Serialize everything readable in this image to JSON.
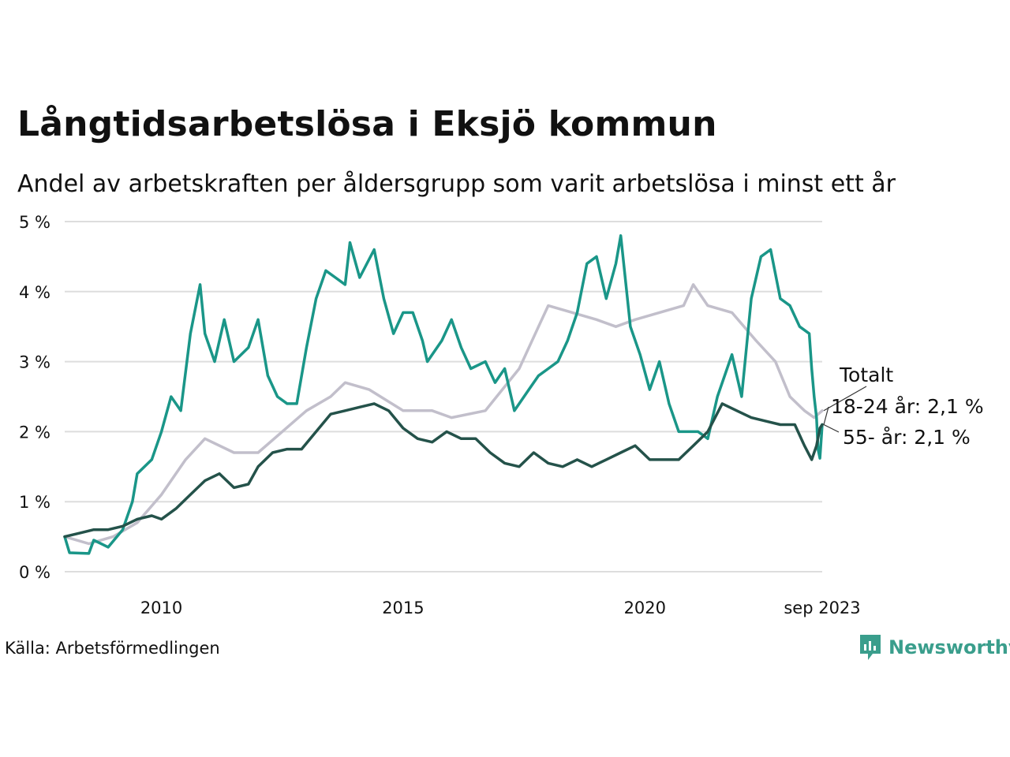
{
  "title": "Långtidsarbetslösa i Eksjö kommun",
  "subtitle": "Andel av arbetskraften per åldersgrupp som varit arbetslösa i minst ett år",
  "source": "Källa: Arbetsförmedlingen",
  "brand": "Newsworthy",
  "colors": {
    "total": "#c2bfcb",
    "youth": "#1a9688",
    "senior": "#24524a",
    "grid": "#dddddd",
    "brand": "#3a9e8c"
  },
  "chart_data": {
    "type": "line",
    "xlim": [
      2008.0,
      2023.667
    ],
    "ylim": [
      0,
      5
    ],
    "y_ticks": [
      {
        "value": 0,
        "label": "0 %"
      },
      {
        "value": 1,
        "label": "1 %"
      },
      {
        "value": 2,
        "label": "2 %"
      },
      {
        "value": 3,
        "label": "3 %"
      },
      {
        "value": 4,
        "label": "4 %"
      },
      {
        "value": 5,
        "label": "5 %"
      }
    ],
    "x_ticks": [
      {
        "value": 2010,
        "label": "2010"
      },
      {
        "value": 2015,
        "label": "2015"
      },
      {
        "value": 2020,
        "label": "2020"
      },
      {
        "value": 2023.667,
        "label": "sep 2023"
      }
    ],
    "series": [
      {
        "name": "Totalt",
        "label": "Totalt",
        "color": "#c2bfcb",
        "points": [
          [
            2008.0,
            0.5
          ],
          [
            2008.5,
            0.4
          ],
          [
            2009.0,
            0.5
          ],
          [
            2009.5,
            0.7
          ],
          [
            2010.0,
            1.1
          ],
          [
            2010.5,
            1.6
          ],
          [
            2010.9,
            1.9
          ],
          [
            2011.5,
            1.7
          ],
          [
            2012.0,
            1.7
          ],
          [
            2012.5,
            2.0
          ],
          [
            2013.0,
            2.3
          ],
          [
            2013.5,
            2.5
          ],
          [
            2013.8,
            2.7
          ],
          [
            2014.3,
            2.6
          ],
          [
            2015.0,
            2.3
          ],
          [
            2015.6,
            2.3
          ],
          [
            2016.0,
            2.2
          ],
          [
            2016.7,
            2.3
          ],
          [
            2017.4,
            2.9
          ],
          [
            2017.8,
            3.5
          ],
          [
            2018.0,
            3.8
          ],
          [
            2018.5,
            3.7
          ],
          [
            2019.0,
            3.6
          ],
          [
            2019.4,
            3.5
          ],
          [
            2019.8,
            3.6
          ],
          [
            2020.3,
            3.7
          ],
          [
            2020.8,
            3.8
          ],
          [
            2021.0,
            4.1
          ],
          [
            2021.3,
            3.8
          ],
          [
            2021.8,
            3.7
          ],
          [
            2022.3,
            3.3
          ],
          [
            2022.7,
            3.0
          ],
          [
            2023.0,
            2.5
          ],
          [
            2023.3,
            2.3
          ],
          [
            2023.5,
            2.2
          ],
          [
            2023.667,
            2.3
          ]
        ]
      },
      {
        "name": "18-24 år",
        "label": "18-24 år: 2,1 %",
        "color": "#1a9688",
        "points": [
          [
            2008.0,
            0.5
          ],
          [
            2008.1,
            0.27
          ],
          [
            2008.5,
            0.26
          ],
          [
            2008.6,
            0.45
          ],
          [
            2008.9,
            0.35
          ],
          [
            2009.2,
            0.6
          ],
          [
            2009.4,
            1.0
          ],
          [
            2009.5,
            1.4
          ],
          [
            2009.8,
            1.6
          ],
          [
            2010.0,
            2.0
          ],
          [
            2010.2,
            2.5
          ],
          [
            2010.4,
            2.3
          ],
          [
            2010.6,
            3.4
          ],
          [
            2010.8,
            4.1
          ],
          [
            2010.9,
            3.4
          ],
          [
            2011.1,
            3.0
          ],
          [
            2011.3,
            3.6
          ],
          [
            2011.5,
            3.0
          ],
          [
            2011.8,
            3.2
          ],
          [
            2012.0,
            3.6
          ],
          [
            2012.2,
            2.8
          ],
          [
            2012.4,
            2.5
          ],
          [
            2012.6,
            2.4
          ],
          [
            2012.8,
            2.4
          ],
          [
            2013.0,
            3.2
          ],
          [
            2013.2,
            3.9
          ],
          [
            2013.4,
            4.3
          ],
          [
            2013.6,
            4.2
          ],
          [
            2013.8,
            4.1
          ],
          [
            2013.9,
            4.7
          ],
          [
            2014.1,
            4.2
          ],
          [
            2014.4,
            4.6
          ],
          [
            2014.6,
            3.9
          ],
          [
            2014.8,
            3.4
          ],
          [
            2015.0,
            3.7
          ],
          [
            2015.2,
            3.7
          ],
          [
            2015.4,
            3.3
          ],
          [
            2015.5,
            3.0
          ],
          [
            2015.8,
            3.3
          ],
          [
            2016.0,
            3.6
          ],
          [
            2016.2,
            3.2
          ],
          [
            2016.4,
            2.9
          ],
          [
            2016.7,
            3.0
          ],
          [
            2016.9,
            2.7
          ],
          [
            2017.1,
            2.9
          ],
          [
            2017.3,
            2.3
          ],
          [
            2017.6,
            2.6
          ],
          [
            2017.8,
            2.8
          ],
          [
            2018.0,
            2.9
          ],
          [
            2018.2,
            3.0
          ],
          [
            2018.4,
            3.3
          ],
          [
            2018.6,
            3.7
          ],
          [
            2018.8,
            4.4
          ],
          [
            2019.0,
            4.5
          ],
          [
            2019.2,
            3.9
          ],
          [
            2019.4,
            4.4
          ],
          [
            2019.5,
            4.8
          ],
          [
            2019.7,
            3.5
          ],
          [
            2019.9,
            3.1
          ],
          [
            2020.1,
            2.6
          ],
          [
            2020.3,
            3.0
          ],
          [
            2020.5,
            2.4
          ],
          [
            2020.7,
            2.0
          ],
          [
            2020.9,
            2.0
          ],
          [
            2021.1,
            2.0
          ],
          [
            2021.3,
            1.9
          ],
          [
            2021.5,
            2.5
          ],
          [
            2021.8,
            3.1
          ],
          [
            2022.0,
            2.5
          ],
          [
            2022.2,
            3.9
          ],
          [
            2022.4,
            4.5
          ],
          [
            2022.6,
            4.6
          ],
          [
            2022.8,
            3.9
          ],
          [
            2023.0,
            3.8
          ],
          [
            2023.2,
            3.5
          ],
          [
            2023.4,
            3.4
          ],
          [
            2023.45,
            2.9
          ],
          [
            2023.5,
            2.5
          ],
          [
            2023.55,
            2.2
          ],
          [
            2023.58,
            1.75
          ],
          [
            2023.62,
            1.62
          ],
          [
            2023.667,
            2.1
          ]
        ]
      },
      {
        "name": "55- år",
        "label": "55- år: 2,1 %",
        "color": "#24524a",
        "points": [
          [
            2008.0,
            0.5
          ],
          [
            2008.3,
            0.55
          ],
          [
            2008.6,
            0.6
          ],
          [
            2008.9,
            0.6
          ],
          [
            2009.2,
            0.65
          ],
          [
            2009.5,
            0.75
          ],
          [
            2009.8,
            0.8
          ],
          [
            2010.0,
            0.75
          ],
          [
            2010.3,
            0.9
          ],
          [
            2010.6,
            1.1
          ],
          [
            2010.9,
            1.3
          ],
          [
            2011.2,
            1.4
          ],
          [
            2011.5,
            1.2
          ],
          [
            2011.8,
            1.25
          ],
          [
            2012.0,
            1.5
          ],
          [
            2012.3,
            1.7
          ],
          [
            2012.6,
            1.75
          ],
          [
            2012.9,
            1.75
          ],
          [
            2013.2,
            2.0
          ],
          [
            2013.5,
            2.25
          ],
          [
            2013.8,
            2.3
          ],
          [
            2014.1,
            2.35
          ],
          [
            2014.4,
            2.4
          ],
          [
            2014.7,
            2.3
          ],
          [
            2015.0,
            2.05
          ],
          [
            2015.3,
            1.9
          ],
          [
            2015.6,
            1.85
          ],
          [
            2015.9,
            2.0
          ],
          [
            2016.2,
            1.9
          ],
          [
            2016.5,
            1.9
          ],
          [
            2016.8,
            1.7
          ],
          [
            2017.1,
            1.55
          ],
          [
            2017.4,
            1.5
          ],
          [
            2017.7,
            1.7
          ],
          [
            2018.0,
            1.55
          ],
          [
            2018.3,
            1.5
          ],
          [
            2018.6,
            1.6
          ],
          [
            2018.9,
            1.5
          ],
          [
            2019.2,
            1.6
          ],
          [
            2019.5,
            1.7
          ],
          [
            2019.8,
            1.8
          ],
          [
            2020.1,
            1.6
          ],
          [
            2020.4,
            1.6
          ],
          [
            2020.7,
            1.6
          ],
          [
            2021.0,
            1.8
          ],
          [
            2021.3,
            2.0
          ],
          [
            2021.6,
            2.4
          ],
          [
            2021.9,
            2.3
          ],
          [
            2022.2,
            2.2
          ],
          [
            2022.5,
            2.15
          ],
          [
            2022.8,
            2.1
          ],
          [
            2023.1,
            2.1
          ],
          [
            2023.3,
            1.8
          ],
          [
            2023.45,
            1.6
          ],
          [
            2023.55,
            1.8
          ],
          [
            2023.62,
            2.05
          ],
          [
            2023.667,
            2.1
          ]
        ]
      }
    ]
  }
}
